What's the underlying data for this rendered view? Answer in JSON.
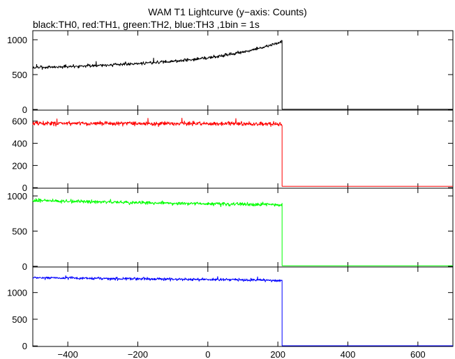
{
  "chart_data": {
    "type": "line",
    "title": "WAM T1 Lightcurve (y−axis: Counts)",
    "subtitle": "black:TH0, red:TH1, green:TH2, blue:TH3 ,1bin = 1s",
    "xlim": [
      -500,
      700
    ],
    "xticks": [
      -400,
      -200,
      0,
      200,
      400,
      600
    ],
    "x_tick_labels": [
      "−400",
      "−200",
      "0",
      "200",
      "400",
      "600"
    ],
    "drop_time": 212,
    "noise_seed": 7,
    "grid": false,
    "panels": [
      {
        "name": "TH0",
        "color": "#000000",
        "ylim": [
          -10,
          1100
        ],
        "yticks": [
          0,
          500,
          1000
        ],
        "ytick_labels": [
          "0",
          "500",
          "1000"
        ],
        "trend": [
          [
            -500,
            600
          ],
          [
            -400,
            615
          ],
          [
            -300,
            635
          ],
          [
            -200,
            660
          ],
          [
            -100,
            690
          ],
          [
            0,
            740
          ],
          [
            100,
            820
          ],
          [
            150,
            880
          ],
          [
            200,
            950
          ],
          [
            212,
            980
          ]
        ],
        "noise": 18,
        "after_value": 2
      },
      {
        "name": "TH1",
        "color": "#ff0000",
        "ylim": [
          -5,
          680
        ],
        "yticks": [
          0,
          200,
          400,
          600
        ],
        "ytick_labels": [
          "0",
          "200",
          "400",
          "600"
        ],
        "trend": [
          [
            -500,
            578
          ],
          [
            -300,
            578
          ],
          [
            -100,
            577
          ],
          [
            100,
            576
          ],
          [
            212,
            575
          ]
        ],
        "noise": 14,
        "after_value": 12
      },
      {
        "name": "TH2",
        "color": "#00ff00",
        "ylim": [
          -10,
          1080
        ],
        "yticks": [
          0,
          500,
          1000
        ],
        "ytick_labels": [
          "0",
          "500",
          "1000"
        ],
        "trend": [
          [
            -500,
            935
          ],
          [
            -300,
            915
          ],
          [
            -100,
            895
          ],
          [
            100,
            880
          ],
          [
            212,
            870
          ]
        ],
        "noise": 20,
        "after_value": 8
      },
      {
        "name": "TH3",
        "color": "#0000ff",
        "ylim": [
          -10,
          1440
        ],
        "yticks": [
          0,
          500,
          1000
        ],
        "ytick_labels": [
          "0",
          "500",
          "1000"
        ],
        "trend": [
          [
            -500,
            1280
          ],
          [
            -300,
            1265
          ],
          [
            -100,
            1250
          ],
          [
            100,
            1235
          ],
          [
            212,
            1225
          ]
        ],
        "noise": 20,
        "after_value": 3
      }
    ]
  }
}
